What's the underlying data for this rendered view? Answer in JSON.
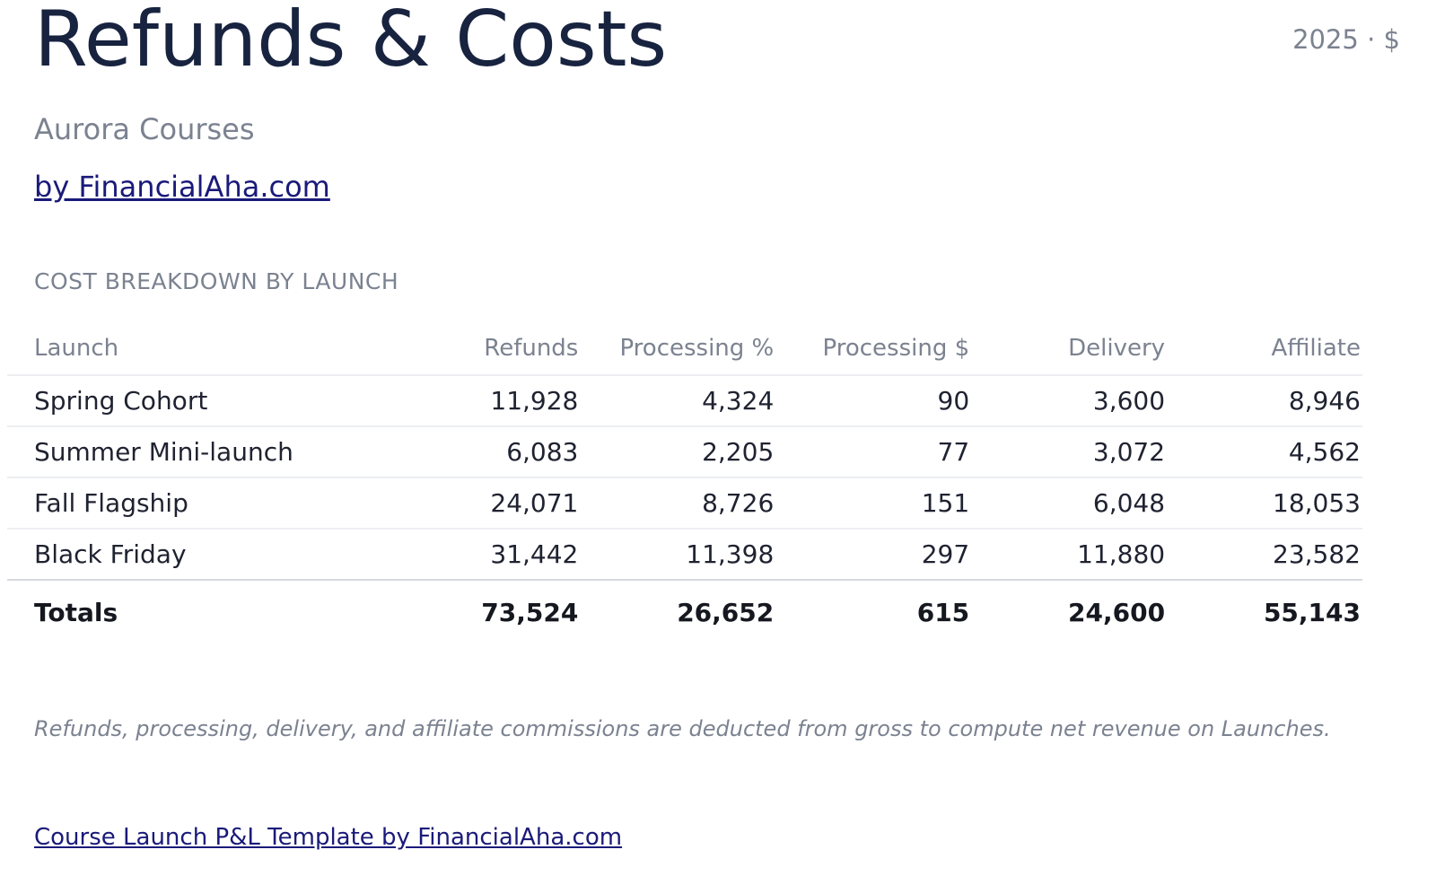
{
  "header": {
    "title": "Refunds & Costs",
    "period": "2025 · $",
    "subtitle": "Aurora Courses",
    "byline": "by FinancialAha.com"
  },
  "section": {
    "label": "COST BREAKDOWN BY LAUNCH"
  },
  "table": {
    "columns": [
      "Launch",
      "Refunds",
      "Processing %",
      "Processing $",
      "Delivery",
      "Affiliate"
    ],
    "rows": [
      [
        "Spring Cohort",
        "11,928",
        "4,324",
        "90",
        "3,600",
        "8,946"
      ],
      [
        "Summer Mini-launch",
        "6,083",
        "2,205",
        "77",
        "3,072",
        "4,562"
      ],
      [
        "Fall Flagship",
        "24,071",
        "8,726",
        "151",
        "6,048",
        "18,053"
      ],
      [
        "Black Friday",
        "31,442",
        "11,398",
        "297",
        "11,880",
        "23,582"
      ]
    ],
    "totals": [
      "Totals",
      "73,524",
      "26,652",
      "615",
      "24,600",
      "55,143"
    ]
  },
  "note": "Refunds, processing, delivery, and affiliate commissions are deducted from gross to compute net revenue on Launches.",
  "footer": {
    "link": "Course Launch P&L Template by FinancialAha.com"
  },
  "colors": {
    "title": "#17233f",
    "muted": "#7b8290",
    "link": "#1a1a7a",
    "divider": "#eceef1"
  }
}
